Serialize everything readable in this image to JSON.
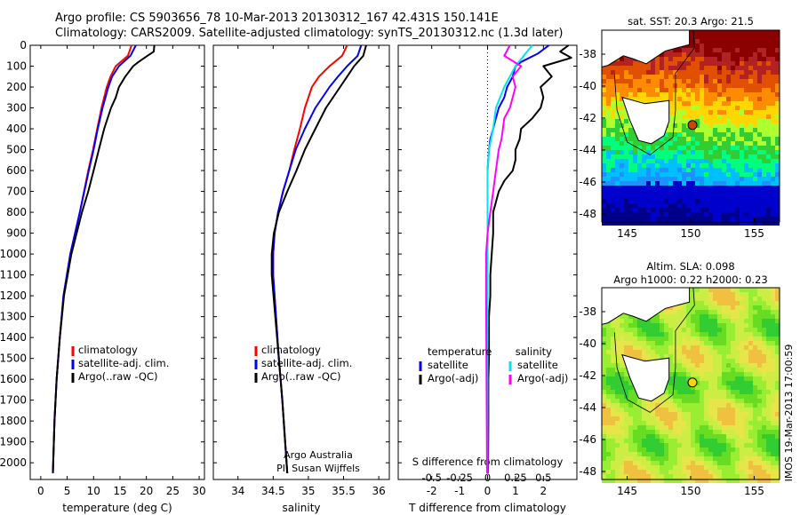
{
  "header": {
    "line1": "Argo profile: CS 5903656_78 10-Mar-2013 20130312_167 42.431S 150.141E",
    "line2": "Climatology: CARS2009. Satellite-adjusted climatology: synTS_20130312.nc (1.3d later)"
  },
  "colors": {
    "climatology": "#ff0000",
    "satellite": "#0000ff",
    "argo": "#000000",
    "salinity_satellite": "#00e5ee",
    "argo_salinity_adj": "#ff00ff"
  },
  "chart_data": [
    {
      "type": "line",
      "panel": "temperature",
      "xlabel": "temperature (deg C)",
      "ylabel": "",
      "xlim": [
        -2,
        31
      ],
      "ylim": [
        2080,
        0
      ],
      "xticks": [
        0,
        5,
        10,
        15,
        20,
        25,
        30
      ],
      "yticks": [
        0,
        100,
        200,
        300,
        400,
        500,
        600,
        700,
        800,
        900,
        1000,
        1100,
        1200,
        1300,
        1400,
        1500,
        1600,
        1700,
        1800,
        1900,
        2000
      ],
      "legend": [
        "climatology",
        "satellite-adj. clim.",
        "Argo(..raw -QC)"
      ],
      "legend_loc": "lower-center",
      "series": [
        {
          "name": "climatology",
          "color": "#ff0000",
          "depth": [
            0,
            50,
            100,
            150,
            200,
            300,
            400,
            500,
            600,
            800,
            1000,
            1200,
            1400,
            1600,
            1800,
            2050
          ],
          "values": [
            17.2,
            16.5,
            14.2,
            13.2,
            12.5,
            11.5,
            10.7,
            9.9,
            9.0,
            7.4,
            5.6,
            4.3,
            3.6,
            3.0,
            2.6,
            2.3
          ]
        },
        {
          "name": "satellite-adj. clim.",
          "color": "#0000ff",
          "depth": [
            0,
            50,
            100,
            150,
            200,
            300,
            400,
            500,
            600,
            800,
            1000,
            1200,
            1400,
            1600,
            1800,
            2050
          ],
          "values": [
            18.0,
            17.0,
            14.8,
            13.5,
            12.8,
            11.7,
            10.8,
            10.0,
            9.1,
            7.4,
            5.6,
            4.3,
            3.6,
            3.0,
            2.6,
            2.3
          ]
        },
        {
          "name": "Argo(..raw -QC)",
          "color": "#000000",
          "depth": [
            0,
            30,
            50,
            80,
            100,
            150,
            200,
            250,
            300,
            400,
            500,
            600,
            700,
            800,
            1000,
            1200,
            1400,
            1600,
            1800,
            2050
          ],
          "values": [
            21.5,
            21.4,
            20.2,
            18.5,
            17.5,
            16.0,
            14.8,
            14.2,
            13.3,
            12.0,
            11.0,
            10.0,
            9.0,
            7.8,
            5.8,
            4.4,
            3.6,
            3.0,
            2.6,
            2.3
          ]
        }
      ]
    },
    {
      "type": "line",
      "panel": "salinity",
      "xlabel": "salinity",
      "ylabel": "",
      "xlim": [
        33.65,
        36.15
      ],
      "ylim": [
        2080,
        0
      ],
      "xticks": [
        34,
        34.5,
        35,
        35.5,
        36
      ],
      "legend": [
        "climatology",
        "satellite-adj. clim.",
        "Argo(..raw -QC)"
      ],
      "legend_loc": "lower-center",
      "annotation": [
        "Argo Australia",
        "PI: Susan Wijffels"
      ],
      "series": [
        {
          "name": "climatology",
          "color": "#ff0000",
          "depth": [
            0,
            50,
            100,
            150,
            200,
            300,
            400,
            500,
            600,
            700,
            800,
            900,
            1000,
            1100,
            1300,
            1500,
            1700,
            1900,
            2050
          ],
          "values": [
            35.55,
            35.48,
            35.3,
            35.15,
            35.05,
            34.95,
            34.88,
            34.8,
            34.73,
            34.64,
            34.57,
            34.52,
            34.5,
            34.5,
            34.54,
            34.58,
            34.63,
            34.67,
            34.7
          ]
        },
        {
          "name": "satellite-adj. clim.",
          "color": "#0000ff",
          "depth": [
            0,
            50,
            100,
            150,
            200,
            300,
            400,
            500,
            600,
            700,
            800,
            900,
            1000,
            1100,
            1300,
            1500,
            1700,
            1900,
            2050
          ],
          "values": [
            35.75,
            35.7,
            35.55,
            35.42,
            35.3,
            35.1,
            34.95,
            34.82,
            34.73,
            34.64,
            34.57,
            34.52,
            34.5,
            34.5,
            34.54,
            34.58,
            34.63,
            34.67,
            34.7
          ]
        },
        {
          "name": "Argo(..raw -QC)",
          "color": "#000000",
          "depth": [
            0,
            50,
            100,
            150,
            200,
            300,
            400,
            500,
            600,
            700,
            800,
            900,
            1000,
            1100,
            1300,
            1500,
            1700,
            1900,
            2050
          ],
          "values": [
            35.82,
            35.78,
            35.65,
            35.55,
            35.45,
            35.25,
            35.1,
            34.95,
            34.83,
            34.7,
            34.58,
            34.51,
            34.48,
            34.48,
            34.53,
            34.58,
            34.63,
            34.67,
            34.7
          ]
        }
      ]
    },
    {
      "type": "line",
      "panel": "difference",
      "xlabel": "T difference from climatology",
      "xlabel_top": "S difference from climatology",
      "ylabel": "",
      "xlim": [
        -3.2,
        3.2
      ],
      "ylim": [
        2080,
        0
      ],
      "xticks_T": [
        -2,
        -1,
        0,
        1,
        2
      ],
      "xticks_T_labels": [
        "-2",
        "-1",
        "0",
        "1",
        "2"
      ],
      "xticks_S": [
        -0.5,
        -0.25,
        0,
        0.25,
        0.5
      ],
      "xticks_S_labels": [
        "-0.5",
        "-0.25",
        "0",
        "0.25",
        "0.5"
      ],
      "legend_left_title": "temperature",
      "legend_left": [
        "satellite",
        "Argo(-adj)"
      ],
      "legend_right_title": "salinity",
      "legend_right": [
        "satellite",
        "Argo(-adj)"
      ],
      "series": [
        {
          "name": "temperature satellite",
          "color": "#0000ff",
          "depth": [
            0,
            40,
            80,
            100,
            150,
            200,
            250,
            300,
            350,
            400,
            450,
            500,
            600,
            800,
            1000,
            2050
          ],
          "values": [
            2.2,
            1.8,
            1.2,
            1.0,
            0.9,
            0.7,
            0.6,
            0.4,
            0.3,
            0.2,
            0.1,
            0.05,
            0.0,
            0.0,
            0.0,
            0.0
          ]
        },
        {
          "name": "temperature Argo(-adj)",
          "color": "#000000",
          "depth": [
            0,
            30,
            60,
            100,
            150,
            200,
            250,
            300,
            350,
            400,
            450,
            500,
            550,
            600,
            650,
            700,
            800,
            900,
            1000,
            1100,
            1200,
            1300,
            1400,
            1500,
            1600,
            1800,
            2050
          ],
          "values": [
            2.9,
            2.6,
            3.0,
            2.0,
            2.3,
            1.9,
            2.0,
            1.9,
            1.6,
            1.2,
            1.15,
            1.0,
            1.0,
            0.9,
            0.6,
            0.4,
            0.2,
            0.2,
            0.15,
            0.1,
            0.1,
            0.05,
            0.05,
            0.05,
            0.03,
            0.03,
            0.02
          ]
        },
        {
          "name": "salinity satellite",
          "color": "#00e5ee",
          "depth": [
            0,
            50,
            100,
            200,
            300,
            400,
            500,
            600,
            800,
            1000,
            2050
          ],
          "values": [
            1.6,
            1.3,
            1.0,
            0.6,
            0.3,
            0.2,
            0.05,
            0.0,
            0.0,
            0.0,
            0.0
          ]
        },
        {
          "name": "salinity Argo(-adj)",
          "color": "#ff00ff",
          "depth": [
            0,
            50,
            100,
            150,
            200,
            250,
            300,
            350,
            400,
            450,
            500,
            550,
            600,
            700,
            800,
            900,
            1000,
            1200,
            2050
          ],
          "values": [
            0.8,
            0.6,
            1.2,
            0.9,
            1.0,
            0.9,
            0.8,
            0.6,
            0.55,
            0.5,
            0.4,
            0.35,
            0.3,
            0.2,
            0.1,
            0.0,
            -0.05,
            -0.05,
            -0.02
          ]
        }
      ]
    },
    {
      "type": "heatmap",
      "panel": "sst-map",
      "title": "sat. SST: 20.3  Argo: 21.5",
      "xlim": [
        143,
        157
      ],
      "ylim": [
        -48.5,
        -36.5
      ],
      "xticks": [
        145,
        150,
        155
      ],
      "yticks": [
        -38,
        -40,
        -42,
        -44,
        -46,
        -48
      ],
      "marker": {
        "lon": 150.141,
        "lat": -42.431
      }
    },
    {
      "type": "heatmap",
      "panel": "sla-map",
      "title": "Altim. SLA: 0.098",
      "subtitle": "Argo h1000: 0.22 h2000: 0.23",
      "xlim": [
        143,
        157
      ],
      "ylim": [
        -48.5,
        -36.5
      ],
      "xticks": [
        145,
        150,
        155
      ],
      "yticks": [
        -38,
        -40,
        -42,
        -44,
        -46,
        -48
      ],
      "marker": {
        "lon": 150.141,
        "lat": -42.431
      }
    }
  ],
  "footer_vertical": "IMOS 19-Mar-2013 17:00:59"
}
